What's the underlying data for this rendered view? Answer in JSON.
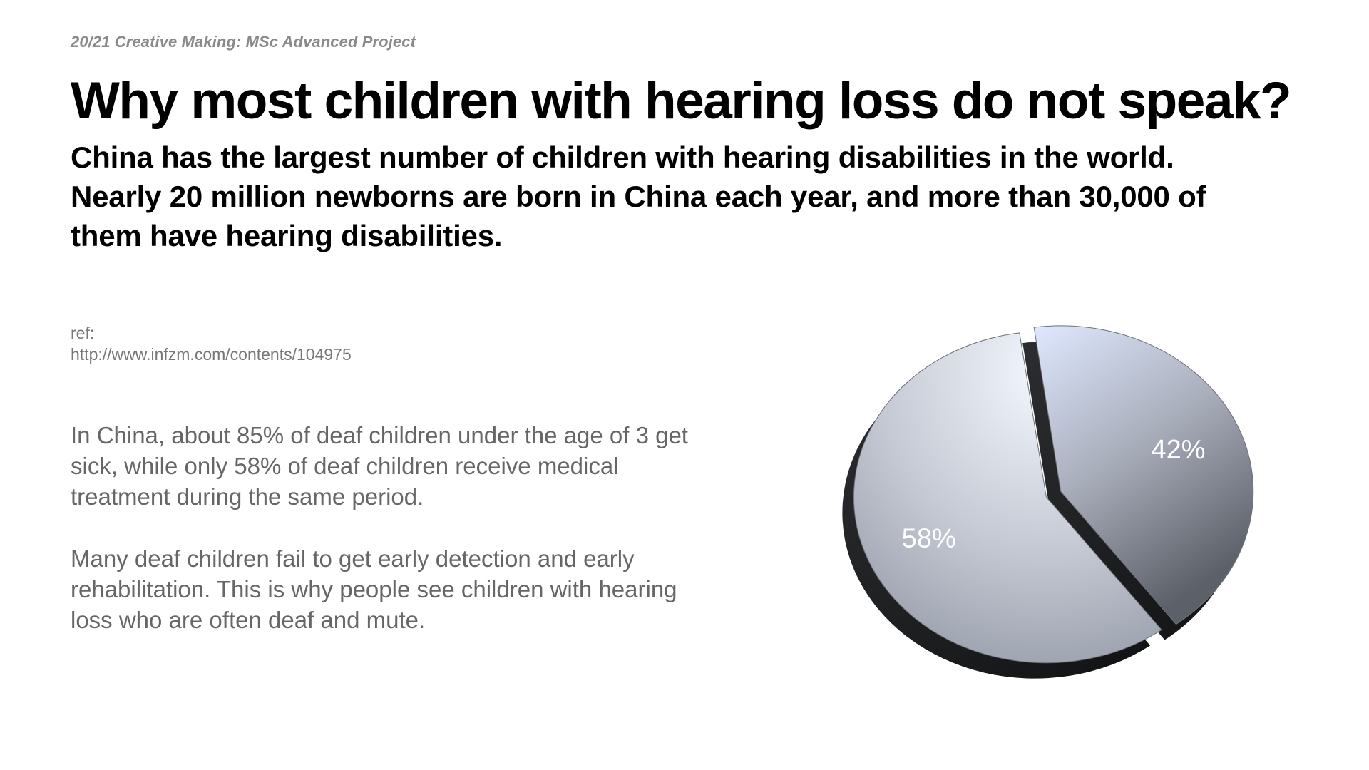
{
  "header": {
    "kicker": "20/21 Creative Making: MSc Advanced Project",
    "title": "Why most children with hearing loss do not speak?",
    "subtitle_lines": [
      "China has the largest number of children with hearing disabilities in the world.",
      "Nearly 20 million newborns are born in China each year, and more than 30,000 of",
      "them have hearing disabilities."
    ]
  },
  "reference": {
    "label": "ref:",
    "url": "http://www.infzm.com/contents/104975"
  },
  "paragraphs": [
    [
      "In China, about 85% of deaf children under the age of 3 get",
      "sick, while only 58% of deaf children receive medical",
      "treatment during the same period."
    ],
    [
      "Many deaf children fail to get early detection and early",
      "rehabilitation. This is why people see children with hearing",
      "loss who are often deaf and mute."
    ]
  ],
  "chart_data": {
    "type": "pie",
    "title": "",
    "slices": [
      {
        "label": "58%",
        "value": 58,
        "color": "#c9ccd6",
        "exploded": false
      },
      {
        "label": "42%",
        "value": 42,
        "color": "#9aa0ad",
        "exploded": true
      }
    ],
    "style": "3d-tilted",
    "legend": "none"
  }
}
